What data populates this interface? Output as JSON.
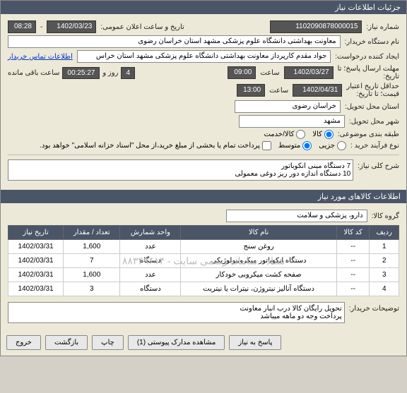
{
  "titlebar": "جزئیات اطلاعات نیاز",
  "fields": {
    "need_number_label": "شماره نیاز:",
    "need_number": "1102090878000015",
    "announce_label": "تاریخ و ساعت اعلان عمومی:",
    "announce_date": "1402/03/23",
    "announce_time": "08:28",
    "buyer_label": "نام دستگاه خریدار:",
    "buyer": "معاونت بهداشتی دانشگاه علوم پزشکی مشهد استان خراسان رضوی",
    "requester_label": "ایجاد کننده درخواست:",
    "requester": "جواد مقدم کارپرداز معاونت بهداشتی دانشگاه علوم پزشکی مشهد استان خراس",
    "contact_link": "اطلاعات تماس خریدار",
    "deadline_label": "مهلت ارسال پاسخ؛ تا",
    "deadline_label2": "تاریخ:",
    "deadline_date": "1402/03/27",
    "deadline_time_label": "ساعت",
    "deadline_time": "09:00",
    "remaining_days": "4",
    "remaining_days_label": "روز و",
    "remaining_time": "00:25:27",
    "remaining_time_label": "ساعت باقی مانده",
    "credit_label": "حداقل تاریخ اعتبار",
    "credit_label2": "قیمت؛ تا تاریخ:",
    "credit_date": "1402/04/31",
    "credit_time_label": "ساعت",
    "credit_time": "13:00",
    "delivery_province_label": "استان محل تحویل:",
    "delivery_province": "خراسان رضوی",
    "delivery_city_label": "شهر محل تحویل:",
    "delivery_city": "مشهد",
    "classification_label": "طبقه بندی موضوعی:",
    "class_goods": "کالا",
    "class_service": "کالا/خدمت",
    "purchase_type_label": "نوع فرآیند خرید :",
    "type_small": "جزیی",
    "type_medium": "متوسط",
    "type_note": "پرداخت تمام یا بخشی از مبلغ خرید،از محل \"اسناد خزانه اسلامی\" خواهد بود.",
    "summary_label": "شرح کلی نیاز:",
    "summary": "7 دستگاه مینی انکوباتور\n10 دستگاه اندازه دور ریز دوغی معمولی",
    "group_label": "گروه کالا:",
    "group": "دارو، پزشکی و سلامت"
  },
  "section2": "اطلاعات کالاهای مورد نیاز",
  "table": {
    "headers": [
      "ردیف",
      "کد کالا",
      "نام کالا",
      "واحد شمارش",
      "تعداد / مقدار",
      "تاریخ نیاز"
    ],
    "rows": [
      [
        "1",
        "--",
        "روغن سنج",
        "عدد",
        "1,600",
        "1402/03/31"
      ],
      [
        "2",
        "--",
        "دستگاه انکوباتور میکروبیولوژیکی",
        "دستگاه",
        "7",
        "1402/03/31"
      ],
      [
        "3",
        "--",
        "صفحه کشت میکروبی خودکار",
        "عدد",
        "1,600",
        "1402/03/31"
      ],
      [
        "4",
        "--",
        "دستگاه آنالیز نیتروژن، نیترات یا نیتریت",
        "دستگاه",
        "3",
        "1402/03/31"
      ]
    ],
    "watermark": "ستاد - سامانه رسمی سایت - ۸۸۳۴۹۶۱۴"
  },
  "buyer_notes_label": "توضیحات خریدار:",
  "buyer_notes": "تحویل رایگان کالا درب انبار معاونت\nپرداخت وجه دو ماهه میباشد",
  "buttons": {
    "respond": "پاسخ به نیاز",
    "attachments": "مشاهده مدارک پیوستی (1)",
    "print": "چاپ",
    "back": "بازگشت",
    "exit": "خروج"
  }
}
